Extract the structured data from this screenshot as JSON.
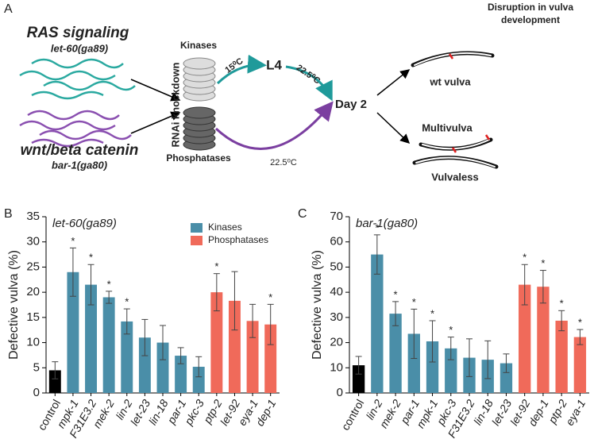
{
  "diagram": {
    "panel": "A",
    "pathway1": "RAS signaling",
    "allele1": "let-60(ga89)",
    "pathway2": "wnt/beta catenin",
    "allele2": "bar-1(ga80)",
    "kinases": "Kinases",
    "rnai": "RNAi knockdown",
    "phosphatases": "Phosphatases",
    "temp1": "15⁰C",
    "stage": "L4",
    "temp2": "22.5⁰C",
    "temp3": "22.5⁰C",
    "day": "Day 2",
    "heading_line1": "Disruption in vulva",
    "heading_line2": "development",
    "outcome1": "wt vulva",
    "outcome2": "Multivulva",
    "outcome3": "Vulvaless"
  },
  "chart_data": [
    {
      "type": "bar",
      "panel": "B",
      "title": "let-60(ga89)",
      "ylabel": "Defective vulva (%)",
      "categories": [
        "control",
        "mpk-1",
        "F31E3.2",
        "mek-2",
        "lin-2",
        "let-23",
        "lin-18",
        "par-1",
        "pkc-3",
        "ptp-2",
        "let-92",
        "eya-1",
        "dep-1"
      ],
      "values": [
        4.5,
        24,
        21.5,
        19,
        14.2,
        11,
        10,
        7.4,
        5.2,
        20,
        18.3,
        14.3,
        13.6
      ],
      "errors": [
        1.7,
        4.8,
        4,
        1.2,
        2.5,
        3.6,
        3.4,
        1.6,
        2,
        3.7,
        5.8,
        3.3,
        4
      ],
      "colors": [
        "#000000",
        "#4a8ea8",
        "#4a8ea8",
        "#4a8ea8",
        "#4a8ea8",
        "#4a8ea8",
        "#4a8ea8",
        "#4a8ea8",
        "#4a8ea8",
        "#f06a5a",
        "#f06a5a",
        "#f06a5a",
        "#f06a5a"
      ],
      "significance": [
        null,
        "*",
        "*",
        "*",
        "*",
        null,
        null,
        null,
        null,
        "*",
        null,
        null,
        "*"
      ],
      "legend": [
        {
          "name": "Kinases",
          "color": "#4a8ea8"
        },
        {
          "name": "Phosphatases",
          "color": "#f06a5a"
        }
      ],
      "ylim": [
        0,
        35
      ],
      "yticks": [
        0,
        5,
        10,
        15,
        20,
        25,
        30,
        35
      ]
    },
    {
      "type": "bar",
      "panel": "C",
      "title": "bar-1(ga80)",
      "ylabel": "Defective vulva (%)",
      "categories": [
        "control",
        "lin-2",
        "mek-2",
        "par-1",
        "mpk-1",
        "pkc-3",
        "F31E3.2",
        "lin-18",
        "let-23",
        "let-92",
        "dep-1",
        "ptp-2",
        "eya-1"
      ],
      "values": [
        11,
        55,
        31.5,
        23.5,
        20.5,
        17.7,
        14,
        13.2,
        11.8,
        43,
        42.2,
        28.7,
        22.2
      ],
      "errors": [
        3.5,
        7.8,
        4.8,
        9.8,
        8.2,
        4.5,
        7.5,
        7.5,
        3.7,
        8,
        6.5,
        4,
        3
      ],
      "colors": [
        "#000000",
        "#4a8ea8",
        "#4a8ea8",
        "#4a8ea8",
        "#4a8ea8",
        "#4a8ea8",
        "#4a8ea8",
        "#4a8ea8",
        "#4a8ea8",
        "#f06a5a",
        "#f06a5a",
        "#f06a5a",
        "#f06a5a"
      ],
      "significance": [
        null,
        "*",
        "*",
        "*",
        "*",
        "*",
        null,
        null,
        null,
        "*",
        "*",
        "*",
        "*"
      ],
      "ylim": [
        0,
        70
      ],
      "yticks": [
        0,
        10,
        20,
        30,
        40,
        50,
        60,
        70
      ]
    }
  ]
}
